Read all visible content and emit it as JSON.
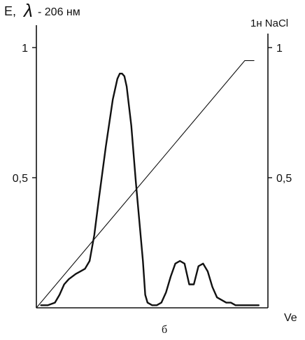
{
  "chart_data": {
    "type": "line",
    "ylabel_left_prefix": "E,",
    "ylabel_left_symbol": "λ",
    "ylabel_left_suffix": "- 206 нм",
    "ylabel_right": "1н NaCl",
    "xlabel": "Ve",
    "caption": "б",
    "yticks_left": [
      {
        "value": 1,
        "label": "1"
      },
      {
        "value": 0.5,
        "label": "0,5"
      }
    ],
    "yticks_right": [
      {
        "value": 1,
        "label": "1"
      },
      {
        "value": 0.5,
        "label": "0,5"
      }
    ],
    "ylim": [
      0,
      1
    ],
    "grid": false,
    "series": [
      {
        "kind": "absorbance",
        "x": [
          0.02,
          0.05,
          0.08,
          0.1,
          0.12,
          0.14,
          0.17,
          0.19,
          0.21,
          0.23,
          0.25,
          0.27,
          0.3,
          0.33,
          0.35,
          0.36,
          0.37,
          0.38,
          0.39,
          0.41,
          0.43,
          0.46,
          0.47,
          0.48,
          0.5,
          0.52,
          0.54,
          0.56,
          0.58,
          0.6,
          0.62,
          0.64,
          0.66,
          0.68,
          0.7,
          0.72,
          0.74,
          0.76,
          0.78,
          0.8,
          0.82,
          0.84,
          0.86,
          0.88,
          0.9,
          0.92,
          0.94,
          0.96
        ],
        "y": [
          0.01,
          0.01,
          0.02,
          0.05,
          0.09,
          0.11,
          0.13,
          0.14,
          0.15,
          0.18,
          0.28,
          0.42,
          0.62,
          0.8,
          0.88,
          0.9,
          0.9,
          0.89,
          0.85,
          0.7,
          0.48,
          0.18,
          0.05,
          0.02,
          0.01,
          0.01,
          0.02,
          0.06,
          0.12,
          0.17,
          0.18,
          0.17,
          0.09,
          0.09,
          0.16,
          0.17,
          0.14,
          0.08,
          0.04,
          0.03,
          0.02,
          0.02,
          0.01,
          0.01,
          0.01,
          0.01,
          0.01,
          0.01
        ]
      },
      {
        "kind": "gradient",
        "x": [
          0,
          0.9,
          0.94
        ],
        "y": [
          0,
          0.95,
          0.95
        ]
      }
    ]
  }
}
